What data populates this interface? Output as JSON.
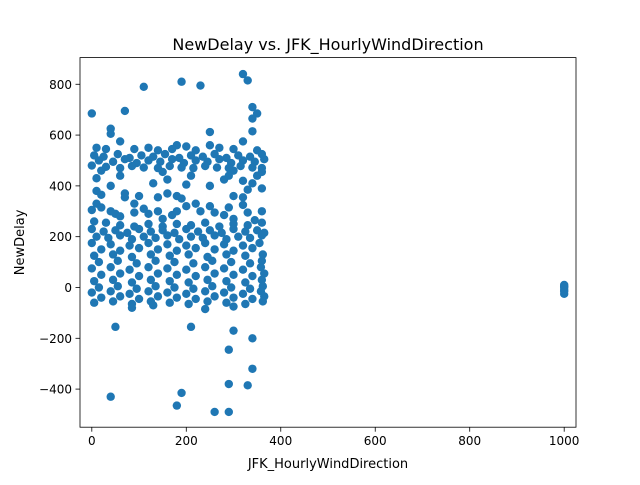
{
  "chart_data": {
    "type": "scatter",
    "title": "NewDelay vs. JFK_HourlyWindDirection",
    "xlabel": "JFK_HourlyWindDirection",
    "ylabel": "NewDelay",
    "xlim": [
      -25,
      1025
    ],
    "ylim": [
      -550,
      905
    ],
    "xticks": [
      0,
      200,
      400,
      600,
      800,
      1000
    ],
    "yticks": [
      -400,
      -200,
      0,
      200,
      400,
      600,
      800
    ],
    "xtick_labels": [
      "0",
      "200",
      "400",
      "600",
      "800",
      "1000"
    ],
    "ytick_labels": [
      "−400",
      "−200",
      "0",
      "200",
      "400",
      "600",
      "800"
    ],
    "color": "#1f77b4",
    "grid": false,
    "series": [
      {
        "points": [
          [
            0,
            685
          ],
          [
            70,
            695
          ],
          [
            110,
            790
          ],
          [
            190,
            810
          ],
          [
            230,
            795
          ],
          [
            320,
            840
          ],
          [
            330,
            815
          ],
          [
            340,
            710
          ],
          [
            350,
            685
          ],
          [
            340,
            665
          ],
          [
            340,
            615
          ],
          [
            250,
            612
          ],
          [
            40,
            625
          ],
          [
            40,
            605
          ],
          [
            60,
            575
          ],
          [
            320,
            575
          ],
          [
            180,
            560
          ],
          [
            250,
            560
          ],
          [
            200,
            555
          ],
          [
            120,
            550
          ],
          [
            10,
            550
          ],
          [
            30,
            545
          ],
          [
            90,
            545
          ],
          [
            140,
            540
          ],
          [
            170,
            545
          ],
          [
            220,
            540
          ],
          [
            270,
            550
          ],
          [
            300,
            545
          ],
          [
            350,
            540
          ],
          [
            5,
            520
          ],
          [
            25,
            515
          ],
          [
            55,
            525
          ],
          [
            80,
            510
          ],
          [
            105,
            520
          ],
          [
            130,
            515
          ],
          [
            155,
            525
          ],
          [
            185,
            510
          ],
          [
            210,
            520
          ],
          [
            235,
            515
          ],
          [
            260,
            525
          ],
          [
            285,
            510
          ],
          [
            310,
            520
          ],
          [
            335,
            515
          ],
          [
            360,
            525
          ],
          [
            15,
            500
          ],
          [
            45,
            495
          ],
          [
            70,
            505
          ],
          [
            95,
            490
          ],
          [
            120,
            500
          ],
          [
            145,
            495
          ],
          [
            170,
            505
          ],
          [
            195,
            490
          ],
          [
            220,
            500
          ],
          [
            245,
            495
          ],
          [
            270,
            505
          ],
          [
            295,
            490
          ],
          [
            320,
            500
          ],
          [
            345,
            495
          ],
          [
            365,
            505
          ],
          [
            0,
            480
          ],
          [
            30,
            475
          ],
          [
            60,
            470
          ],
          [
            85,
            478
          ],
          [
            110,
            472
          ],
          [
            140,
            470
          ],
          [
            165,
            478
          ],
          [
            190,
            472
          ],
          [
            215,
            470
          ],
          [
            240,
            478
          ],
          [
            265,
            472
          ],
          [
            290,
            470
          ],
          [
            315,
            478
          ],
          [
            340,
            472
          ],
          [
            360,
            470
          ],
          [
            20,
            460
          ],
          [
            150,
            455
          ],
          [
            300,
            460
          ],
          [
            210,
            440
          ],
          [
            60,
            440
          ],
          [
            350,
            440
          ],
          [
            160,
            425
          ],
          [
            280,
            425
          ],
          [
            320,
            420
          ],
          [
            130,
            410
          ],
          [
            10,
            430
          ],
          [
            40,
            400
          ],
          [
            200,
            405
          ],
          [
            250,
            400
          ],
          [
            290,
            440
          ],
          [
            340,
            410
          ],
          [
            360,
            390
          ],
          [
            330,
            385
          ],
          [
            360,
            455
          ],
          [
            10,
            380
          ],
          [
            20,
            365
          ],
          [
            70,
            370
          ],
          [
            70,
            355
          ],
          [
            160,
            370
          ],
          [
            180,
            360
          ],
          [
            190,
            350
          ],
          [
            140,
            355
          ],
          [
            300,
            360
          ],
          [
            320,
            355
          ],
          [
            320,
            325
          ],
          [
            290,
            315
          ],
          [
            100,
            360
          ],
          [
            90,
            330
          ],
          [
            10,
            330
          ],
          [
            20,
            315
          ],
          [
            0,
            305
          ],
          [
            40,
            300
          ],
          [
            50,
            290
          ],
          [
            60,
            280
          ],
          [
            90,
            295
          ],
          [
            110,
            310
          ],
          [
            120,
            290
          ],
          [
            140,
            300
          ],
          [
            150,
            270
          ],
          [
            170,
            285
          ],
          [
            180,
            300
          ],
          [
            200,
            320
          ],
          [
            220,
            330
          ],
          [
            230,
            300
          ],
          [
            250,
            320
          ],
          [
            260,
            295
          ],
          [
            280,
            285
          ],
          [
            300,
            270
          ],
          [
            330,
            295
          ],
          [
            345,
            265
          ],
          [
            360,
            300
          ],
          [
            5,
            260
          ],
          [
            30,
            255
          ],
          [
            60,
            245
          ],
          [
            90,
            240
          ],
          [
            120,
            250
          ],
          [
            150,
            240
          ],
          [
            180,
            250
          ],
          [
            210,
            245
          ],
          [
            240,
            255
          ],
          [
            270,
            240
          ],
          [
            300,
            250
          ],
          [
            330,
            245
          ],
          [
            360,
            255
          ],
          [
            0,
            230
          ],
          [
            25,
            220
          ],
          [
            50,
            225
          ],
          [
            75,
            215
          ],
          [
            100,
            230
          ],
          [
            125,
            220
          ],
          [
            150,
            225
          ],
          [
            175,
            215
          ],
          [
            200,
            230
          ],
          [
            225,
            220
          ],
          [
            250,
            225
          ],
          [
            275,
            215
          ],
          [
            300,
            230
          ],
          [
            325,
            220
          ],
          [
            350,
            225
          ],
          [
            365,
            215
          ],
          [
            10,
            200
          ],
          [
            35,
            195
          ],
          [
            60,
            205
          ],
          [
            85,
            190
          ],
          [
            110,
            200
          ],
          [
            135,
            195
          ],
          [
            160,
            205
          ],
          [
            185,
            190
          ],
          [
            210,
            200
          ],
          [
            235,
            195
          ],
          [
            260,
            205
          ],
          [
            285,
            190
          ],
          [
            310,
            200
          ],
          [
            335,
            195
          ],
          [
            360,
            205
          ],
          [
            0,
            175
          ],
          [
            40,
            170
          ],
          [
            80,
            165
          ],
          [
            120,
            175
          ],
          [
            160,
            170
          ],
          [
            200,
            165
          ],
          [
            240,
            175
          ],
          [
            280,
            170
          ],
          [
            320,
            165
          ],
          [
            355,
            175
          ],
          [
            20,
            150
          ],
          [
            60,
            145
          ],
          [
            100,
            155
          ],
          [
            140,
            150
          ],
          [
            180,
            145
          ],
          [
            220,
            155
          ],
          [
            260,
            150
          ],
          [
            300,
            145
          ],
          [
            340,
            155
          ],
          [
            5,
            125
          ],
          [
            45,
            130
          ],
          [
            85,
            120
          ],
          [
            125,
            130
          ],
          [
            165,
            125
          ],
          [
            205,
            130
          ],
          [
            245,
            120
          ],
          [
            285,
            130
          ],
          [
            325,
            125
          ],
          [
            362,
            130
          ],
          [
            15,
            100
          ],
          [
            55,
            105
          ],
          [
            95,
            95
          ],
          [
            135,
            105
          ],
          [
            175,
            100
          ],
          [
            215,
            95
          ],
          [
            255,
            105
          ],
          [
            295,
            100
          ],
          [
            335,
            95
          ],
          [
            360,
            105
          ],
          [
            0,
            75
          ],
          [
            40,
            80
          ],
          [
            80,
            70
          ],
          [
            120,
            80
          ],
          [
            160,
            75
          ],
          [
            200,
            70
          ],
          [
            240,
            80
          ],
          [
            280,
            75
          ],
          [
            320,
            70
          ],
          [
            358,
            80
          ],
          [
            20,
            50
          ],
          [
            60,
            55
          ],
          [
            100,
            45
          ],
          [
            140,
            55
          ],
          [
            180,
            50
          ],
          [
            220,
            45
          ],
          [
            260,
            55
          ],
          [
            300,
            50
          ],
          [
            340,
            45
          ],
          [
            365,
            55
          ],
          [
            5,
            25
          ],
          [
            45,
            30
          ],
          [
            85,
            20
          ],
          [
            125,
            30
          ],
          [
            165,
            25
          ],
          [
            205,
            20
          ],
          [
            245,
            30
          ],
          [
            285,
            25
          ],
          [
            325,
            20
          ],
          [
            360,
            30
          ],
          [
            15,
            0
          ],
          [
            55,
            5
          ],
          [
            95,
            -5
          ],
          [
            135,
            5
          ],
          [
            175,
            0
          ],
          [
            215,
            -5
          ],
          [
            255,
            5
          ],
          [
            295,
            0
          ],
          [
            335,
            -5
          ],
          [
            362,
            5
          ],
          [
            0,
            -20
          ],
          [
            40,
            -15
          ],
          [
            80,
            -25
          ],
          [
            120,
            -15
          ],
          [
            160,
            -20
          ],
          [
            200,
            -25
          ],
          [
            240,
            -15
          ],
          [
            280,
            -20
          ],
          [
            320,
            -25
          ],
          [
            358,
            -15
          ],
          [
            20,
            -40
          ],
          [
            60,
            -35
          ],
          [
            100,
            -45
          ],
          [
            140,
            -35
          ],
          [
            180,
            -40
          ],
          [
            220,
            -45
          ],
          [
            260,
            -35
          ],
          [
            300,
            -40
          ],
          [
            340,
            -45
          ],
          [
            365,
            -35
          ],
          [
            5,
            -60
          ],
          [
            45,
            -55
          ],
          [
            85,
            -65
          ],
          [
            125,
            -55
          ],
          [
            165,
            -60
          ],
          [
            205,
            -65
          ],
          [
            245,
            -55
          ],
          [
            285,
            -60
          ],
          [
            325,
            -65
          ],
          [
            362,
            -55
          ],
          [
            85,
            -80
          ],
          [
            240,
            -85
          ],
          [
            300,
            -75
          ],
          [
            130,
            -70
          ],
          [
            50,
            -155
          ],
          [
            210,
            -155
          ],
          [
            300,
            -170
          ],
          [
            340,
            -200
          ],
          [
            290,
            -245
          ],
          [
            340,
            -320
          ],
          [
            290,
            -380
          ],
          [
            330,
            -385
          ],
          [
            40,
            -430
          ],
          [
            190,
            -415
          ],
          [
            180,
            -465
          ],
          [
            260,
            -490
          ],
          [
            290,
            -490
          ],
          [
            1000,
            -25
          ],
          [
            1000,
            -10
          ],
          [
            1000,
            0
          ],
          [
            1000,
            5
          ],
          [
            1000,
            -15
          ],
          [
            1000,
            10
          ]
        ]
      }
    ]
  }
}
